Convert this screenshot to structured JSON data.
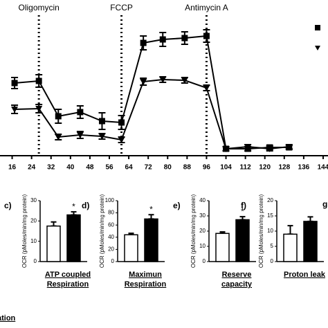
{
  "chart_data": [
    {
      "type": "line",
      "x": [
        17,
        27,
        35,
        44,
        53,
        61,
        70,
        78,
        87,
        96,
        104,
        113,
        122,
        130
      ],
      "xlim": [
        11,
        146
      ],
      "xticks": [
        16,
        24,
        32,
        40,
        48,
        56,
        64,
        72,
        80,
        88,
        96,
        104,
        112,
        120,
        128,
        136,
        144
      ],
      "ylim": [
        0,
        190
      ],
      "series": [
        {
          "color": "#000000",
          "marker": "square",
          "values": [
            105,
            108,
            57,
            63,
            50,
            48,
            163,
            168,
            170,
            173,
            10,
            10,
            12,
            12
          ],
          "errors": [
            8,
            9,
            10,
            9,
            12,
            10,
            10,
            10,
            9,
            9,
            3,
            3,
            3,
            3
          ]
        },
        {
          "color": "#000000",
          "marker": "triangle",
          "values": [
            67,
            68,
            27,
            30,
            28,
            23,
            107,
            110,
            109,
            98,
            10,
            13,
            10,
            13
          ],
          "errors": [
            6,
            6,
            4,
            5,
            4,
            4,
            5,
            4,
            4,
            4,
            3,
            3,
            3,
            3
          ]
        }
      ],
      "annotations": [
        {
          "text": "Oligomycin",
          "x": 27
        },
        {
          "text": "FCCP",
          "x": 61
        },
        {
          "text": "Antimycin A",
          "x": 96
        }
      ]
    },
    {
      "type": "bar",
      "panel": "c)",
      "ylabel": "OCR (pMoles/min/mg protein)",
      "xlabel": [
        "ATP coupled",
        "Respiration"
      ],
      "values": [
        17.5,
        23
      ],
      "errors": [
        2,
        1.5
      ],
      "colors": [
        "#ffffff",
        "#000000"
      ],
      "annotation": "*",
      "ylim": [
        0,
        30
      ],
      "yticks": [
        0,
        10,
        20,
        30
      ]
    },
    {
      "type": "bar",
      "panel": "d)",
      "ylabel": "OCR (pMoles/min/mg protein)",
      "xlabel": [
        "Maximun",
        "Respiration"
      ],
      "values": [
        44,
        70
      ],
      "errors": [
        2.5,
        7
      ],
      "colors": [
        "#ffffff",
        "#000000"
      ],
      "annotation": "*",
      "ylim": [
        0,
        100
      ],
      "yticks": [
        0,
        20,
        40,
        60,
        80,
        100
      ]
    },
    {
      "type": "bar",
      "panel": "e)",
      "ylabel": "OCR (pMoles/min/mg protein)",
      "xlabel": [
        "Reserve",
        "capacity"
      ],
      "values": [
        18.5,
        27.5
      ],
      "errors": [
        1,
        2
      ],
      "colors": [
        "#ffffff",
        "#000000"
      ],
      "annotation": "*",
      "ylim": [
        0,
        40
      ],
      "yticks": [
        0,
        10,
        20,
        30,
        40
      ]
    },
    {
      "type": "bar",
      "panel": "f)",
      "ylabel": "OCR (pMoles/min/mg protein)",
      "xlabel": [
        "Proton leak"
      ],
      "values": [
        9,
        13.2
      ],
      "errors": [
        2.8,
        1.5
      ],
      "colors": [
        "#ffffff",
        "#000000"
      ],
      "ylim": [
        0,
        20
      ],
      "yticks": [
        0,
        5,
        10,
        15,
        20
      ]
    }
  ],
  "cropped_texts": [
    "ation",
    "g"
  ]
}
